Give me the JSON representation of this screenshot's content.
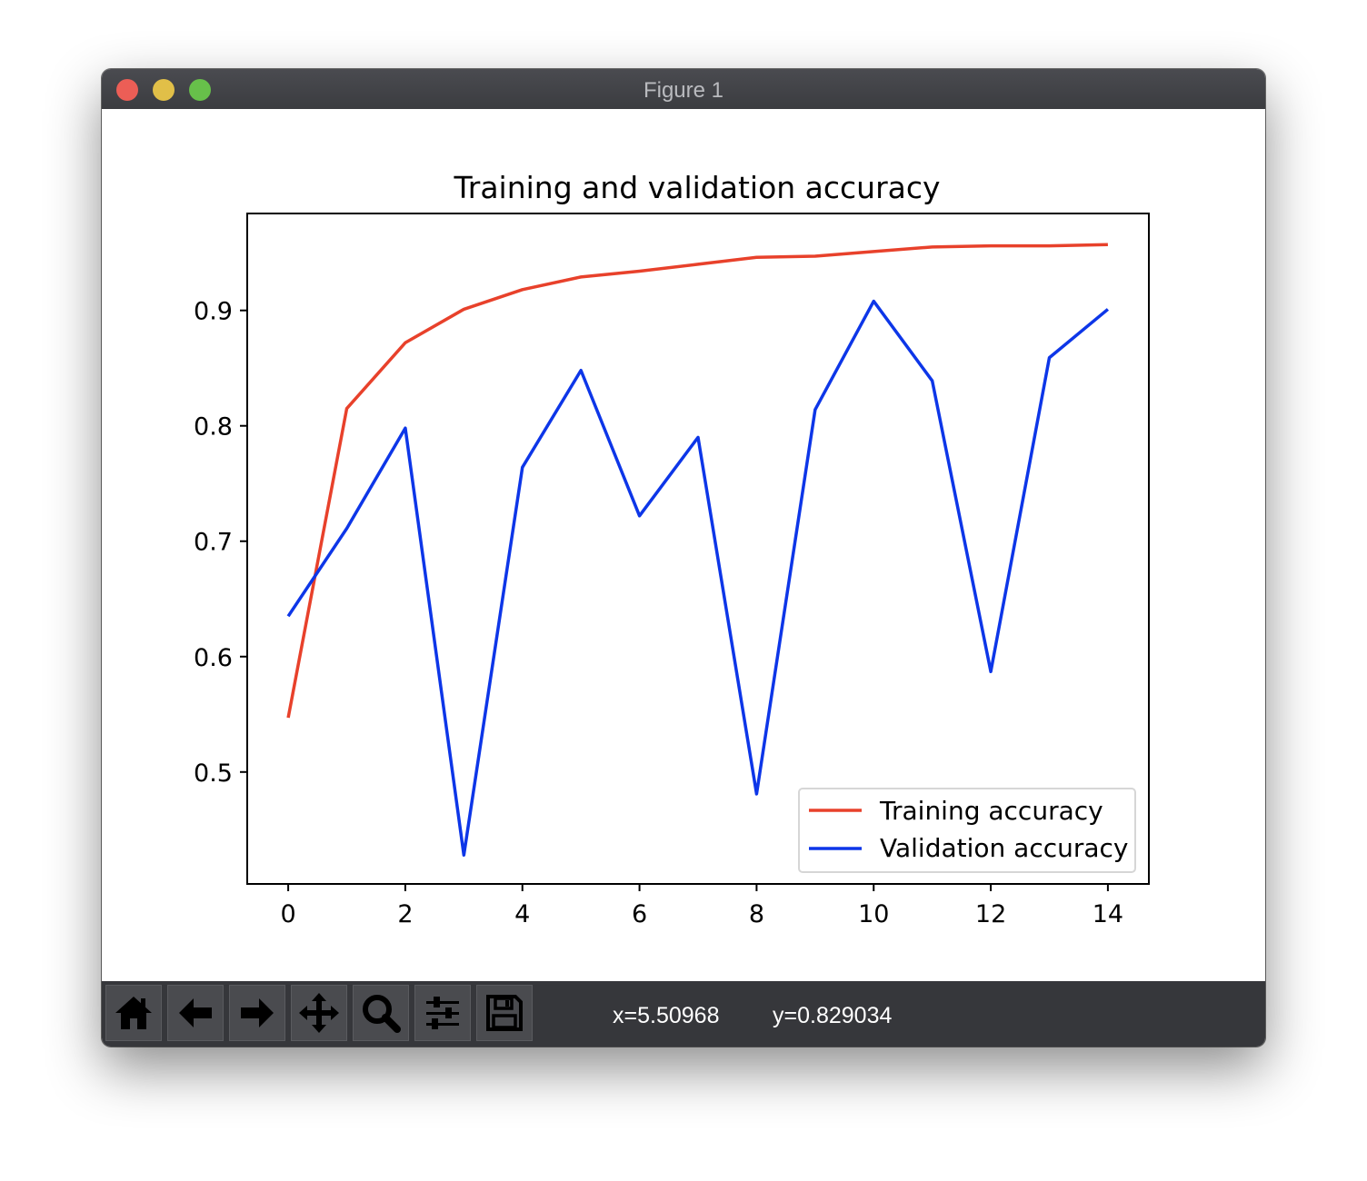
{
  "window": {
    "title": "Figure 1"
  },
  "toolbar": {
    "buttons": [
      {
        "name": "home-button",
        "icon": "home-icon"
      },
      {
        "name": "back-button",
        "icon": "arrow-left-icon"
      },
      {
        "name": "forward-button",
        "icon": "arrow-right-icon"
      },
      {
        "name": "pan-button",
        "icon": "move-icon"
      },
      {
        "name": "zoom-button",
        "icon": "magnifier-icon"
      },
      {
        "name": "configure-subplots-button",
        "icon": "sliders-icon"
      },
      {
        "name": "save-button",
        "icon": "floppy-disk-icon"
      }
    ],
    "x_readout": "x=5.50968",
    "y_readout": "y=0.829034"
  },
  "chart_data": {
    "type": "line",
    "title": "Training and validation accuracy",
    "xlabel": "",
    "ylabel": "",
    "x": [
      0,
      1,
      2,
      3,
      4,
      5,
      6,
      7,
      8,
      9,
      10,
      11,
      12,
      13,
      14
    ],
    "xlim": [
      -0.7,
      14.7
    ],
    "ylim": [
      0.403,
      0.984
    ],
    "xticks": [
      0,
      2,
      4,
      6,
      8,
      10,
      12,
      14
    ],
    "yticks": [
      0.5,
      0.6,
      0.7,
      0.8,
      0.9
    ],
    "ytick_labels": [
      "0.5",
      "0.6",
      "0.7",
      "0.8",
      "0.9"
    ],
    "grid": false,
    "legend_position": "lower right",
    "series": [
      {
        "name": "Training accuracy",
        "color": "#e8412b",
        "values": [
          0.547,
          0.815,
          0.872,
          0.901,
          0.918,
          0.929,
          0.934,
          0.94,
          0.946,
          0.947,
          0.951,
          0.955,
          0.956,
          0.956,
          0.957
        ]
      },
      {
        "name": "Validation accuracy",
        "color": "#0d36e8",
        "values": [
          0.635,
          0.711,
          0.798,
          0.428,
          0.764,
          0.848,
          0.722,
          0.79,
          0.481,
          0.814,
          0.908,
          0.839,
          0.587,
          0.859,
          0.901
        ]
      }
    ]
  }
}
